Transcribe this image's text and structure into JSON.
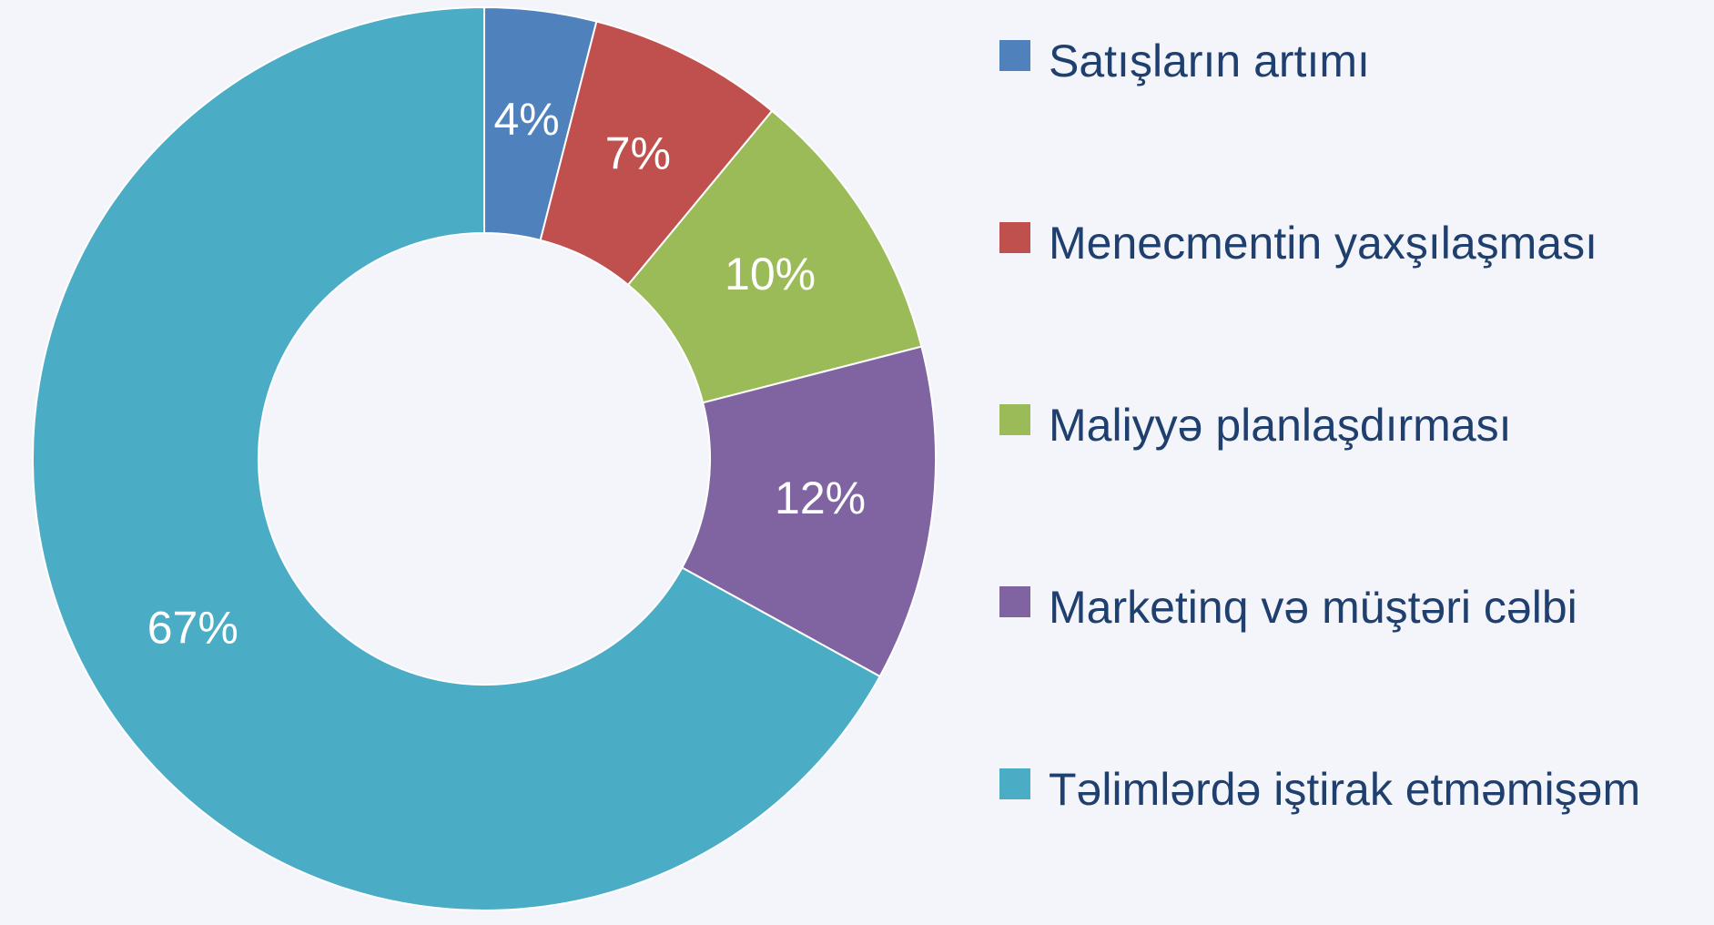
{
  "chart_data": {
    "type": "donut",
    "categories": [
      "Satışların artımı",
      "Menecmentin yaxşılaşması",
      "Maliyyə planlaşdırması",
      "Marketinq və müştəri cəlbi",
      "Təlimlərdə iştirak etməmişəm"
    ],
    "values": [
      4,
      7,
      10,
      12,
      67
    ],
    "value_labels": [
      "4%",
      "7%",
      "10%",
      "12%",
      "67%"
    ],
    "colors": [
      "#4f81bd",
      "#c0504d",
      "#9bbb59",
      "#8064a2",
      "#4bacc6"
    ],
    "legend": "right"
  }
}
